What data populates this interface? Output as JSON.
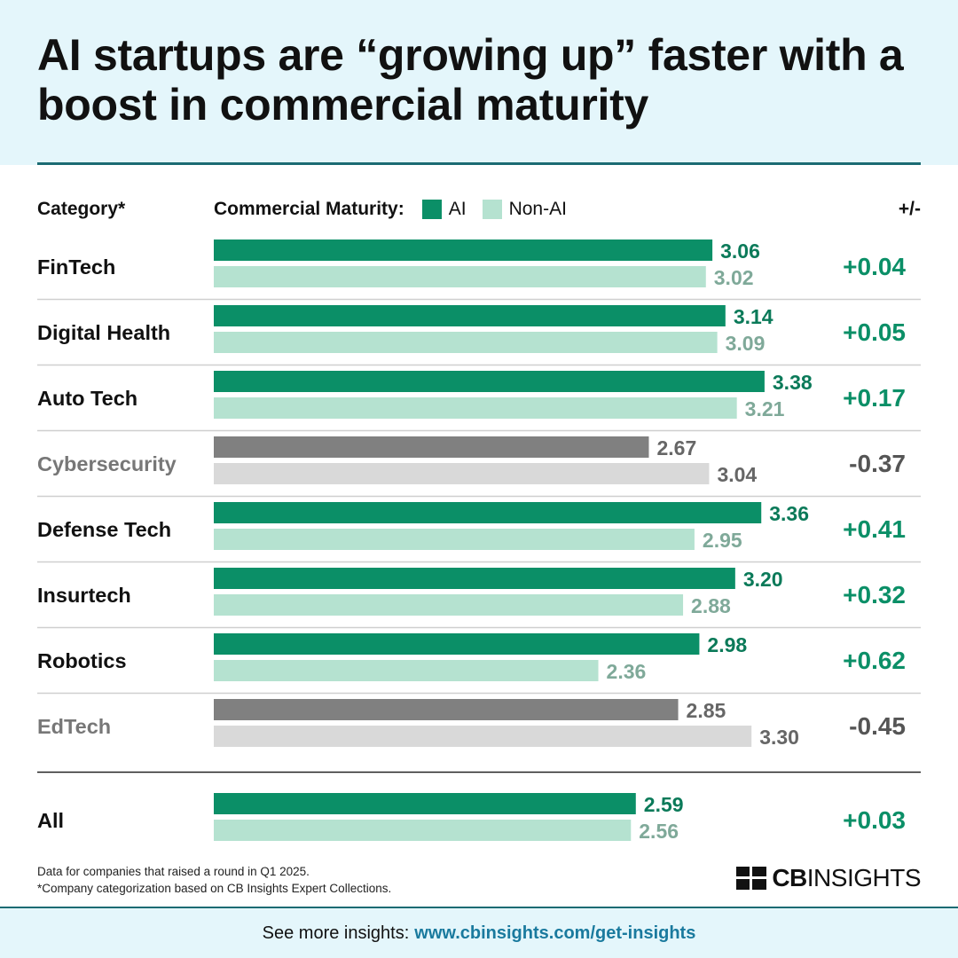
{
  "title": "AI startups are “growing up” faster with a boost in commercial maturity",
  "headers": {
    "category": "Category*",
    "maturity": "Commercial Maturity:",
    "diff": "+/-"
  },
  "colors": {
    "ai_positive": "#0b8f67",
    "nonai_positive": "#b5e2d0",
    "ai_negative": "#808080",
    "nonai_negative": "#d9d9d9",
    "label_ai_positive": "#0b7a59",
    "label_nonai_positive": "#7fa999",
    "label_negative": "#666666",
    "diff_positive": "#0b8f67",
    "diff_negative": "#555555",
    "category_negative": "#777777"
  },
  "chart_data": {
    "type": "bar",
    "orientation": "horizontal",
    "title": "AI startups are “growing up” faster with a boost in commercial maturity",
    "xlabel": "Commercial Maturity",
    "legend": [
      "AI",
      "Non-AI"
    ],
    "xlim": [
      0,
      4
    ],
    "categories": [
      "FinTech",
      "Digital Health",
      "Auto Tech",
      "Cybersecurity",
      "Defense Tech",
      "Insurtech",
      "Robotics",
      "EdTech"
    ],
    "series": [
      {
        "name": "AI",
        "values": [
          3.06,
          3.14,
          3.38,
          2.67,
          3.36,
          3.2,
          2.98,
          2.85
        ]
      },
      {
        "name": "Non-AI",
        "values": [
          3.02,
          3.09,
          3.21,
          3.04,
          2.95,
          2.88,
          2.36,
          3.3
        ]
      }
    ],
    "diff": [
      "+0.04",
      "+0.05",
      "+0.17",
      "-0.37",
      "+0.41",
      "+0.32",
      "+0.62",
      "-0.45"
    ],
    "total": {
      "category": "All",
      "ai": 2.59,
      "nonai": 2.56,
      "diff": "+0.03"
    }
  },
  "footnotes": [
    "Data for companies that raised a round in Q1 2025.",
    "*Company categorization based on CB Insights Expert Collections."
  ],
  "logo": {
    "bold": "CB",
    "regular": "INSIGHTS"
  },
  "footer": {
    "text": "See more insights:",
    "link": "www.cbinsights.com/get-insights"
  }
}
